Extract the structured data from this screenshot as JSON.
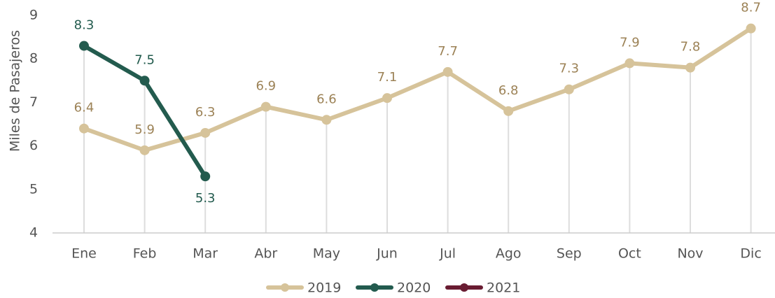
{
  "chart_data": {
    "type": "line",
    "y_label": "Miles de Pasajeros",
    "categories": [
      "Ene",
      "Feb",
      "Mar",
      "Abr",
      "May",
      "Jun",
      "Jul",
      "Ago",
      "Sep",
      "Oct",
      "Nov",
      "Dic"
    ],
    "series": [
      {
        "name": "2019",
        "color": "#d6c39a",
        "values": [
          6.4,
          5.9,
          6.3,
          6.9,
          6.6,
          7.1,
          7.7,
          6.8,
          7.3,
          7.9,
          7.8,
          8.7
        ]
      },
      {
        "name": "2020",
        "color": "#235b4e",
        "values": [
          8.3,
          7.5,
          5.3,
          null,
          null,
          null,
          null,
          null,
          null,
          null,
          null,
          null
        ]
      },
      {
        "name": "2021",
        "color": "#691c32",
        "values": [
          null,
          null,
          null,
          null,
          null,
          null,
          null,
          null,
          null,
          null,
          null,
          null
        ]
      }
    ],
    "ylim": [
      4,
      9
    ],
    "yticks": [
      4,
      5,
      6,
      7,
      8,
      9
    ],
    "grid": false,
    "legend": "bottom"
  }
}
